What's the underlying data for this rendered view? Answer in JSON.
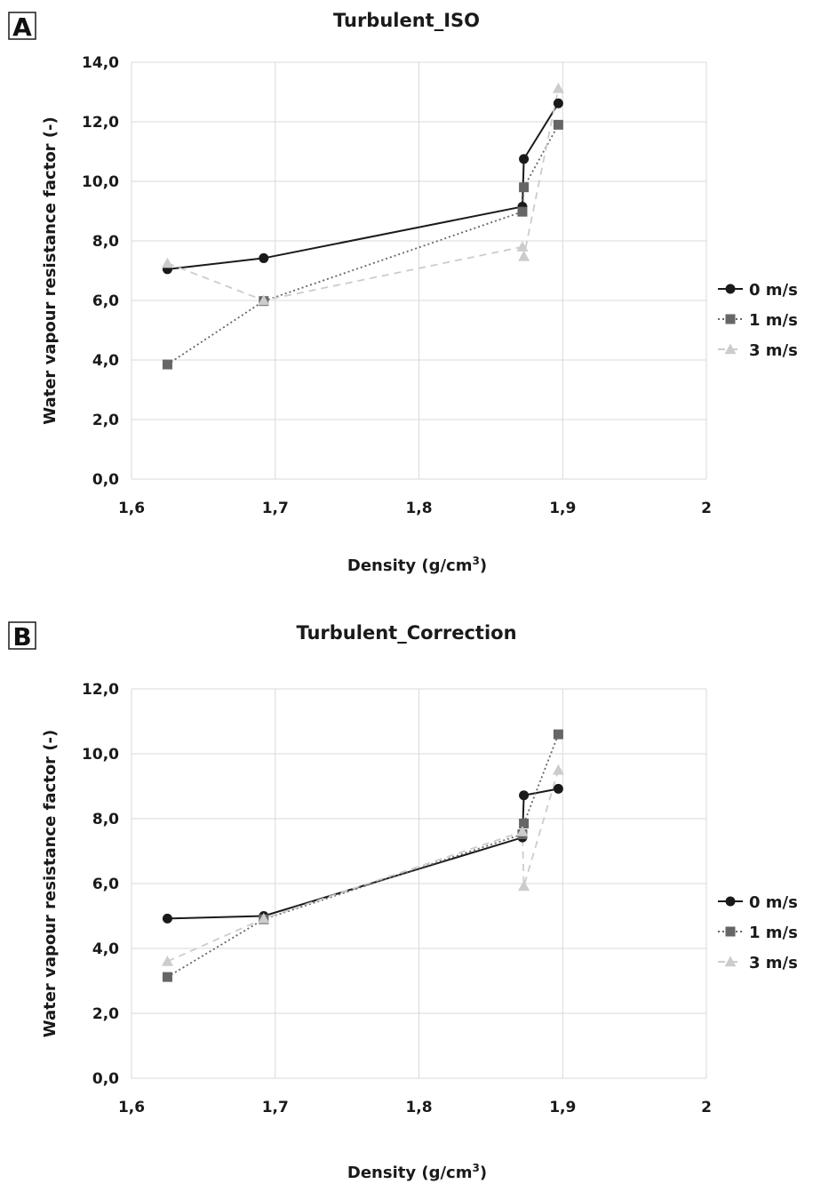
{
  "chart_data": [
    {
      "type": "line",
      "panel_label": "A",
      "title": "Turbulent_ISO",
      "xlabel": "Density (g/cm",
      "xlabel_sup": "3",
      "xlabel_close": ")",
      "ylabel": "Water vapour resistance factor (-)",
      "xlim": [
        1.6,
        2.0
      ],
      "ylim": [
        0,
        14
      ],
      "x_ticks": [
        "1,6",
        "1,7",
        "1,8",
        "1,9",
        "2"
      ],
      "y_ticks": [
        "0,0",
        "2,0",
        "4,0",
        "6,0",
        "8,0",
        "10,0",
        "12,0",
        "14,0"
      ],
      "grid": true,
      "legend_position": "right",
      "series": [
        {
          "name": "0 m/s",
          "marker": "circle",
          "color": "#1a1a1a",
          "line": "solid",
          "x": [
            1.625,
            1.692,
            1.872,
            1.873,
            1.897
          ],
          "y": [
            7.05,
            7.42,
            9.15,
            10.75,
            12.62
          ]
        },
        {
          "name": "1 m/s",
          "marker": "square",
          "color": "#666666",
          "line": "dotted",
          "x": [
            1.625,
            1.692,
            1.872,
            1.873,
            1.897
          ],
          "y": [
            3.85,
            5.98,
            8.98,
            9.8,
            11.9
          ]
        },
        {
          "name": "3 m/s",
          "marker": "triangle",
          "color": "#cccccc",
          "line": "dashed",
          "x": [
            1.625,
            1.692,
            1.872,
            1.873,
            1.897
          ],
          "y": [
            7.25,
            6.0,
            7.8,
            7.48,
            13.12
          ]
        }
      ]
    },
    {
      "type": "line",
      "panel_label": "B",
      "title": "Turbulent_Correction",
      "xlabel": "Density (g/cm",
      "xlabel_sup": "3",
      "xlabel_close": ")",
      "ylabel": "Water vapour resistance factor (-)",
      "xlim": [
        1.6,
        2.0
      ],
      "ylim": [
        0,
        12
      ],
      "x_ticks": [
        "1,6",
        "1,7",
        "1,8",
        "1,9",
        "2"
      ],
      "y_ticks": [
        "0,0",
        "2,0",
        "4,0",
        "6,0",
        "8,0",
        "10,0",
        "12,0"
      ],
      "grid": true,
      "legend_position": "right",
      "series": [
        {
          "name": "0 m/s",
          "marker": "circle",
          "color": "#1a1a1a",
          "line": "solid",
          "x": [
            1.625,
            1.692,
            1.872,
            1.873,
            1.897
          ],
          "y": [
            4.92,
            5.0,
            7.42,
            8.72,
            8.92
          ]
        },
        {
          "name": "1 m/s",
          "marker": "square",
          "color": "#666666",
          "line": "dotted",
          "x": [
            1.625,
            1.692,
            1.872,
            1.873,
            1.897
          ],
          "y": [
            3.12,
            4.9,
            7.52,
            7.85,
            10.6
          ]
        },
        {
          "name": "3 m/s",
          "marker": "triangle",
          "color": "#cccccc",
          "line": "dashed",
          "x": [
            1.625,
            1.692,
            1.872,
            1.873,
            1.897
          ],
          "y": [
            3.6,
            4.92,
            7.6,
            5.92,
            9.5
          ]
        }
      ]
    }
  ]
}
